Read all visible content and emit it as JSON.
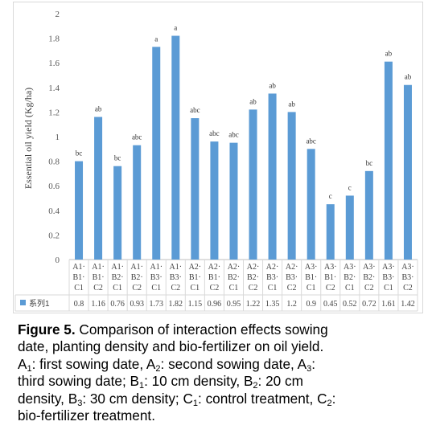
{
  "chart_data": {
    "type": "bar",
    "ylabel": "Essential oil yield (Kg/ha)",
    "ylim": [
      0,
      2
    ],
    "yticks": [
      "0",
      "0.2",
      "0.4",
      "0.6",
      "0.8",
      "1",
      "1.2",
      "1.4",
      "1.6",
      "1.8",
      "2"
    ],
    "grid": false,
    "legend_position": "data-table",
    "bar_color": "#5b9bd5",
    "categories": [
      [
        "A1",
        "B1",
        "C1"
      ],
      [
        "A1",
        "B1",
        "C2"
      ],
      [
        "A1",
        "B2",
        "C1"
      ],
      [
        "A1",
        "B2",
        "C2"
      ],
      [
        "A1",
        "B3",
        "C1"
      ],
      [
        "A1",
        "B3",
        "C2"
      ],
      [
        "A2",
        "B1",
        "C1"
      ],
      [
        "A2",
        "B1",
        "C2"
      ],
      [
        "A2",
        "B2",
        "C1"
      ],
      [
        "A2",
        "B2",
        "C2"
      ],
      [
        "A2",
        "B3",
        "C1"
      ],
      [
        "A2",
        "B3",
        "C2"
      ],
      [
        "A3",
        "B1",
        "C1"
      ],
      [
        "A3",
        "B1",
        "C2"
      ],
      [
        "A3",
        "B2",
        "C1"
      ],
      [
        "A3",
        "B2",
        "C2"
      ],
      [
        "A3",
        "B3",
        "C1"
      ],
      [
        "A3",
        "B3",
        "C2"
      ]
    ],
    "series": [
      {
        "name": "系列1",
        "values": [
          0.8,
          1.16,
          0.76,
          0.93,
          1.73,
          1.82,
          1.15,
          0.96,
          0.95,
          1.22,
          1.35,
          1.2,
          0.9,
          0.45,
          0.52,
          0.72,
          1.61,
          1.42
        ],
        "value_labels": [
          "0.8",
          "1.16",
          "0.76",
          "0.93",
          "1.73",
          "1.82",
          "1.15",
          "0.96",
          "0.95",
          "1.22",
          "1.35",
          "1.2",
          "0.9",
          "0.45",
          "0.52",
          "0.72",
          "1.61",
          "1.42"
        ],
        "significance": [
          "bc",
          "ab",
          "bc",
          "abc",
          "a",
          "a",
          "abc",
          "abc",
          "abc",
          "ab",
          "ab",
          "ab",
          "abc",
          "c",
          "c",
          "bc",
          "ab",
          "ab"
        ]
      }
    ]
  },
  "caption": {
    "label": "Figure 5.",
    "lines": [
      [
        {
          "t": " Comparison of interaction effects sowing"
        }
      ],
      [
        {
          "t": "date, planting density and bio-fertilizer on oil yield."
        }
      ],
      [
        {
          "t": "A"
        },
        {
          "sub": "1"
        },
        {
          "t": ": first sowing date, A"
        },
        {
          "sub": "2"
        },
        {
          "t": ": second sowing date, A"
        },
        {
          "sub": "3"
        },
        {
          "t": ":"
        }
      ],
      [
        {
          "t": "third sowing date; B"
        },
        {
          "sub": "1"
        },
        {
          "t": ": 10 cm density, B"
        },
        {
          "sub": "2"
        },
        {
          "t": ": 20 cm"
        }
      ],
      [
        {
          "t": "density, B"
        },
        {
          "sub": "3"
        },
        {
          "t": ": 30 cm density; C"
        },
        {
          "sub": "1"
        },
        {
          "t": ": control treatment, C"
        },
        {
          "sub": "2"
        },
        {
          "t": ":"
        }
      ],
      [
        {
          "t": "bio-fertilizer treatment."
        }
      ]
    ]
  }
}
